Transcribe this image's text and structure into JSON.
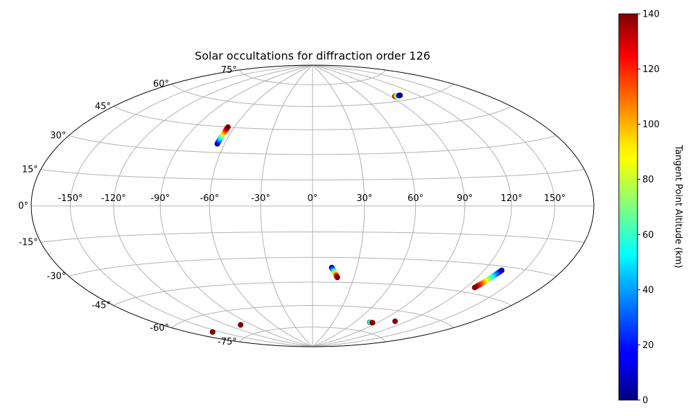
{
  "chart_data": {
    "type": "scatter",
    "projection": "hammer",
    "title": "Solar occultations for diffraction order 126",
    "grid": true,
    "x_ticks": [
      -150,
      -120,
      -90,
      -60,
      -30,
      0,
      30,
      60,
      90,
      120,
      150
    ],
    "x_tick_labels": [
      "-150°",
      "-120°",
      "-90°",
      "-60°",
      "-30°",
      "0°",
      "30°",
      "60°",
      "90°",
      "120°",
      "150°"
    ],
    "y_ticks": [
      -75,
      -60,
      -45,
      -30,
      -15,
      0,
      15,
      30,
      45,
      60,
      75
    ],
    "y_tick_labels": [
      "-75°",
      "-60°",
      "-45°",
      "-30°",
      "-15°",
      "0°",
      "15°",
      "30°",
      "45°",
      "60°",
      "75°"
    ],
    "xlim": [
      -180,
      180
    ],
    "ylim": [
      -90,
      90
    ],
    "colorbar": {
      "label": "Tangent Point Altitude (km)",
      "colormap": "jet",
      "range": [
        0,
        140
      ],
      "ticks": [
        0,
        20,
        40,
        60,
        80,
        100,
        120,
        140
      ],
      "tick_labels": [
        "0",
        "20",
        "40",
        "60",
        "80",
        "100",
        "120",
        "140"
      ]
    },
    "series": [
      {
        "lon": -65,
        "lat_start": 35,
        "lat_end": 45,
        "alt_start": 0,
        "alt_end": 140,
        "n": 18
      },
      {
        "lon_start": 95,
        "lon_end": 102,
        "lat": 63,
        "alt_start": 140,
        "alt_end": 0,
        "n": 14
      },
      {
        "lon_start": 13,
        "lon_end": 18,
        "lat_start": -36,
        "lat_end": -42,
        "alt_start": 0,
        "alt_end": 140,
        "n": 16
      },
      {
        "lon_start": 133,
        "lon_end": 127,
        "lat_start": -32,
        "lat_end": -42,
        "alt_start": 0,
        "alt_end": 140,
        "n": 20
      },
      {
        "lon_start": 80,
        "lon_end": 84,
        "lat": -69,
        "alt_start": 20,
        "alt_end": 140,
        "n": 8
      },
      {
        "lon": 107,
        "lat": -66,
        "alt": 140,
        "n": 1
      },
      {
        "lon": -158,
        "lat": -68,
        "alt": 140,
        "n": 2
      },
      {
        "lon": -104,
        "lat": -69,
        "alt": 140,
        "n": 2
      }
    ]
  }
}
